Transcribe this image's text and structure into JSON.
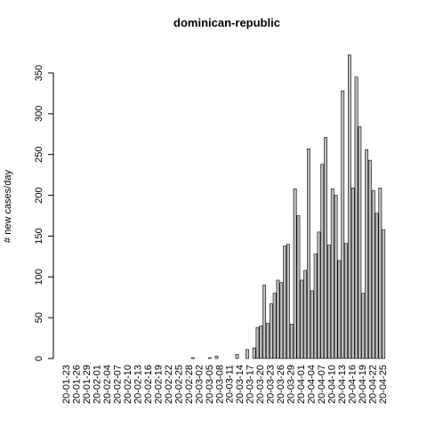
{
  "chart_data": {
    "type": "bar",
    "title": "dominican-republic",
    "y_label": "# new cases/day",
    "categories": [
      "20-01-23",
      null,
      null,
      "20-01-26",
      null,
      null,
      "20-01-29",
      null,
      null,
      "20-02-01",
      null,
      null,
      "20-02-04",
      null,
      null,
      "20-02-07",
      null,
      null,
      "20-02-10",
      null,
      null,
      "20-02-13",
      null,
      null,
      "20-02-16",
      null,
      null,
      "20-02-19",
      null,
      null,
      "20-02-22",
      null,
      null,
      "20-02-25",
      null,
      null,
      "20-02-28",
      null,
      null,
      "20-03-02",
      null,
      null,
      "20-03-05",
      null,
      null,
      "20-03-08",
      null,
      null,
      "20-03-11",
      null,
      null,
      "20-03-14",
      null,
      null,
      "20-03-17",
      null,
      null,
      "20-03-20",
      null,
      null,
      "20-03-23",
      null,
      null,
      "20-03-26",
      null,
      null,
      "20-03-29",
      null,
      null,
      "20-04-01",
      null,
      null,
      "20-04-04",
      null,
      null,
      "20-04-07",
      null,
      null,
      "20-04-10",
      null,
      null,
      "20-04-13",
      null,
      null,
      "20-04-16",
      null,
      null,
      "20-04-19",
      null,
      null,
      "20-04-22",
      null,
      null,
      "20-04-25"
    ],
    "values": [
      0,
      0,
      0,
      0,
      0,
      0,
      0,
      0,
      0,
      0,
      0,
      0,
      0,
      0,
      0,
      0,
      0,
      0,
      0,
      0,
      0,
      0,
      0,
      0,
      0,
      0,
      0,
      0,
      0,
      0,
      0,
      0,
      0,
      0,
      0,
      0,
      0,
      1,
      0,
      0,
      0,
      0,
      1,
      0,
      3,
      0,
      0,
      0,
      0,
      0,
      5,
      0,
      0,
      11,
      0,
      13,
      38,
      40,
      90,
      43,
      67,
      80,
      96,
      93,
      138,
      140,
      42,
      208,
      175,
      96,
      108,
      257,
      83,
      128,
      155,
      238,
      271,
      139,
      208,
      200,
      120,
      328,
      141,
      372,
      209,
      345,
      284,
      80,
      256,
      243,
      206,
      178,
      209,
      158
    ],
    "color": "#bebebe",
    "ylim": [
      0,
      350
    ],
    "yticks": [
      0,
      50,
      100,
      150,
      200,
      250,
      300,
      350
    ]
  }
}
